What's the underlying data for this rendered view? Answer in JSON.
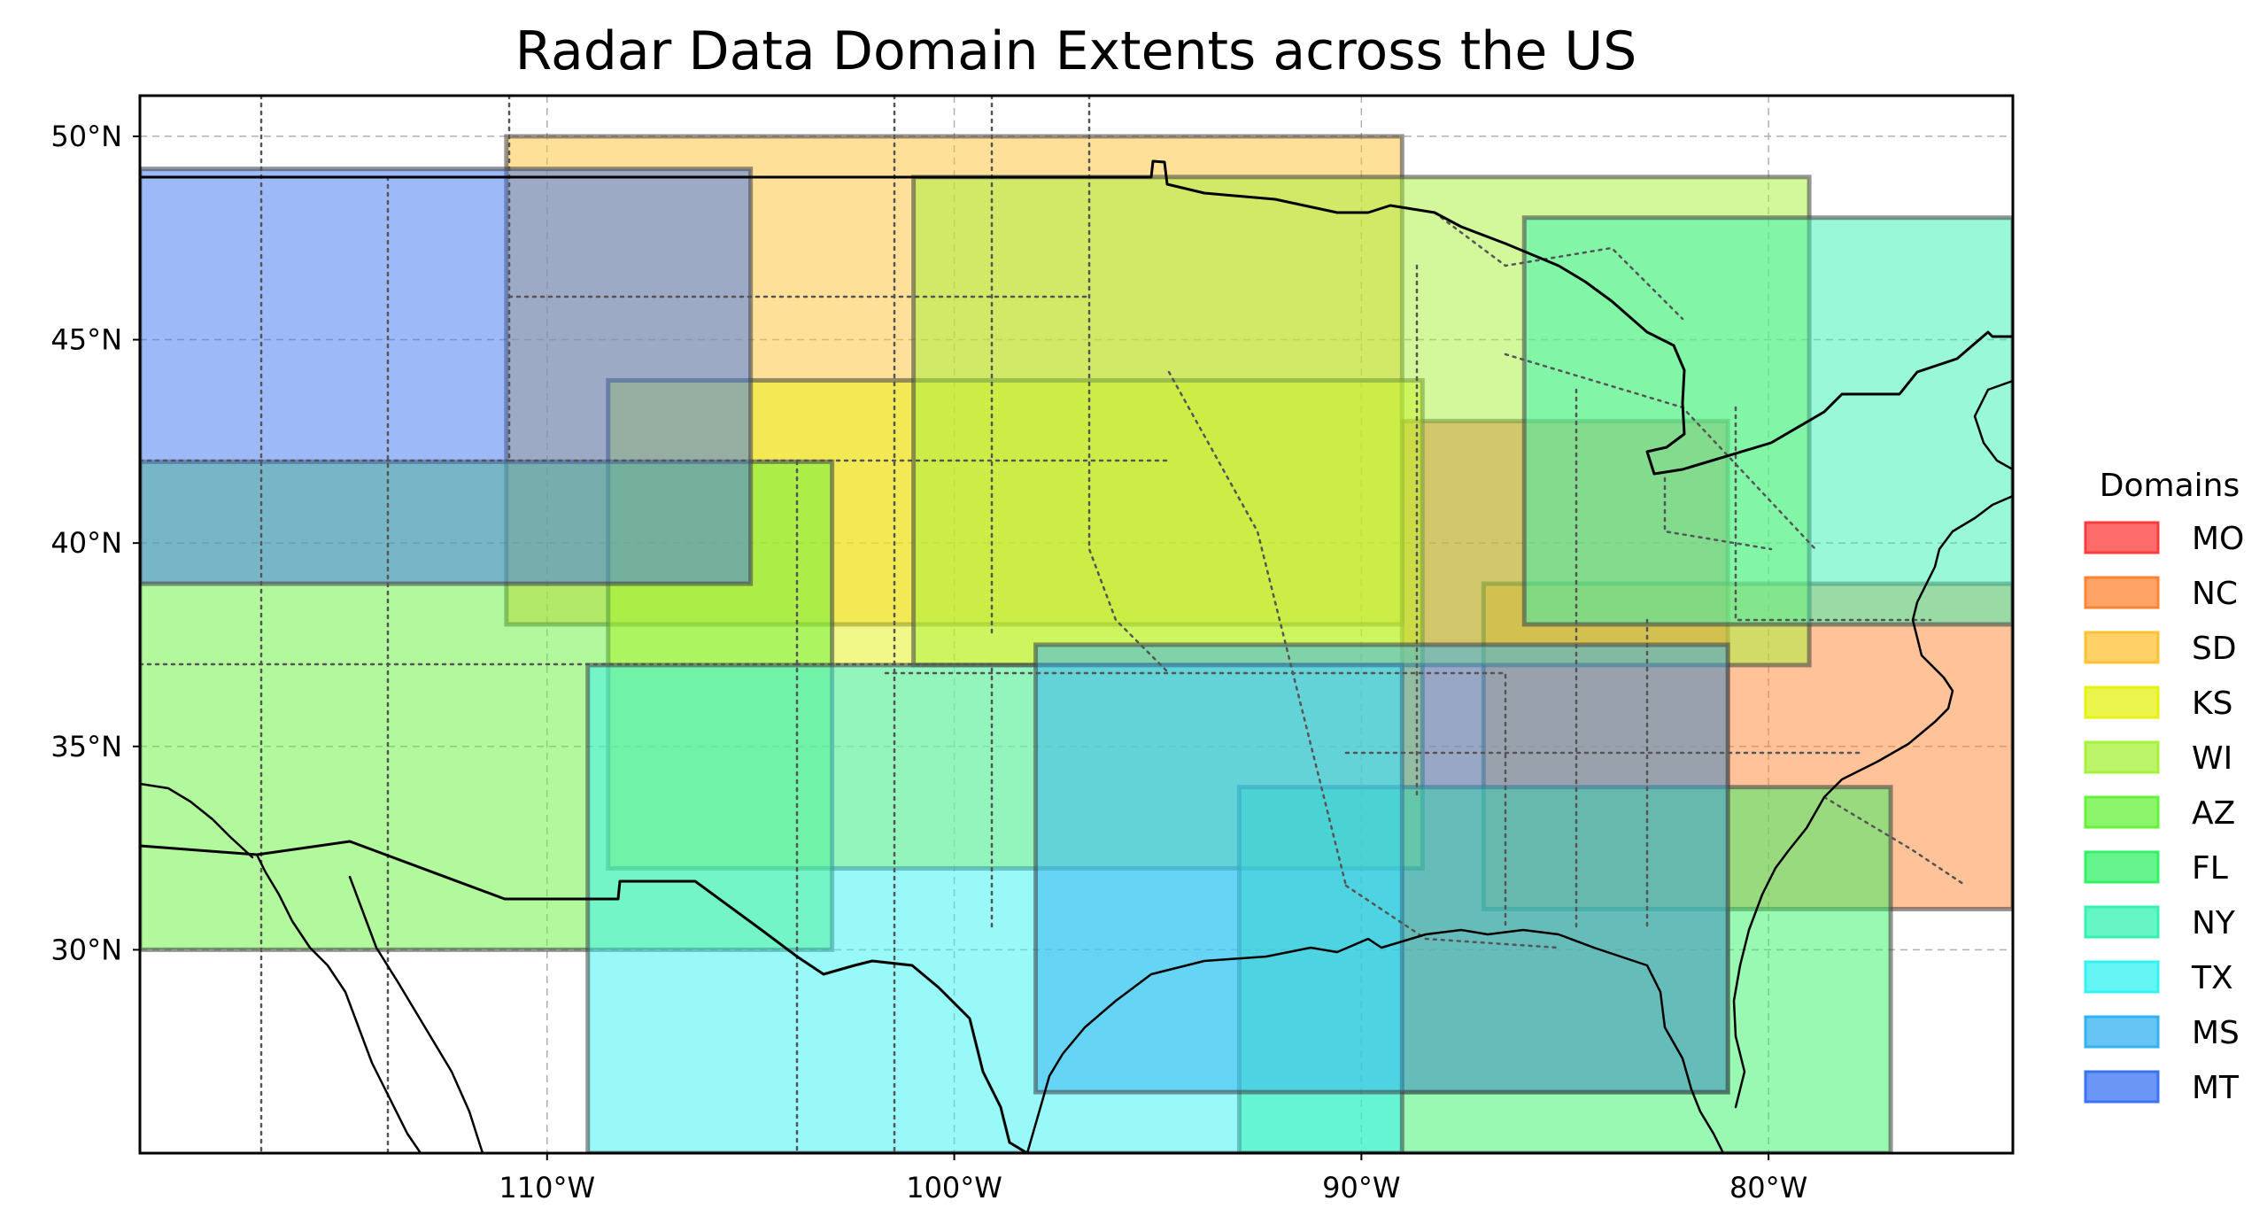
{
  "map": {
    "title": "Radar Data Domain Extents across the US",
    "lon_range": [
      -120,
      -74
    ],
    "lat_range": [
      25,
      51
    ],
    "lon_ticks": [
      {
        "value": -110,
        "label": "110°W"
      },
      {
        "value": -100,
        "label": "100°W"
      },
      {
        "value": -90,
        "label": "90°W"
      },
      {
        "value": -80,
        "label": "80°W"
      }
    ],
    "lat_ticks": [
      {
        "value": 50,
        "label": "50°N"
      },
      {
        "value": 45,
        "label": "45°N"
      },
      {
        "value": 40,
        "label": "40°N"
      },
      {
        "value": 35,
        "label": "35°N"
      },
      {
        "value": 30,
        "label": "30°N"
      }
    ],
    "gridlines": true,
    "legend": {
      "title": "Domains",
      "placement": "right"
    },
    "domains": [
      {
        "name": "MO",
        "color": "#ff3b3b",
        "lon_min": -89,
        "lon_max": -81,
        "lat_min": 26.5,
        "lat_max": 43
      },
      {
        "name": "NC",
        "color": "#ff8533",
        "lon_min": -87,
        "lon_max": -74,
        "lat_min": 31,
        "lat_max": 39
      },
      {
        "name": "SD",
        "color": "#ffc233",
        "lon_min": -111,
        "lon_max": -89,
        "lat_min": 38,
        "lat_max": 50
      },
      {
        "name": "KS",
        "color": "#e6f20f",
        "lon_min": -108.5,
        "lon_max": -88.5,
        "lat_min": 32,
        "lat_max": 44
      },
      {
        "name": "WI",
        "color": "#a6f238",
        "lon_min": -101,
        "lon_max": -79,
        "lat_min": 37,
        "lat_max": 49
      },
      {
        "name": "AZ",
        "color": "#66f23a",
        "lon_min": -120,
        "lon_max": -103,
        "lat_min": 30,
        "lat_max": 42
      },
      {
        "name": "FL",
        "color": "#33f266",
        "lon_min": -93,
        "lon_max": -77,
        "lat_min": 25,
        "lat_max": 34
      },
      {
        "name": "NY",
        "color": "#33f2b2",
        "lon_min": -86,
        "lon_max": -74,
        "lat_min": 38,
        "lat_max": 48
      },
      {
        "name": "TX",
        "color": "#33f2f2",
        "lon_min": -109,
        "lon_max": -89,
        "lat_min": 25,
        "lat_max": 37
      },
      {
        "name": "MS",
        "color": "#33b2f2",
        "lon_min": -98,
        "lon_max": -81,
        "lat_min": 26.5,
        "lat_max": 37.5
      },
      {
        "name": "MT",
        "color": "#3b73f2",
        "lon_min": -120,
        "lon_max": -105,
        "lat_min": 39,
        "lat_max": 49.2
      }
    ]
  }
}
